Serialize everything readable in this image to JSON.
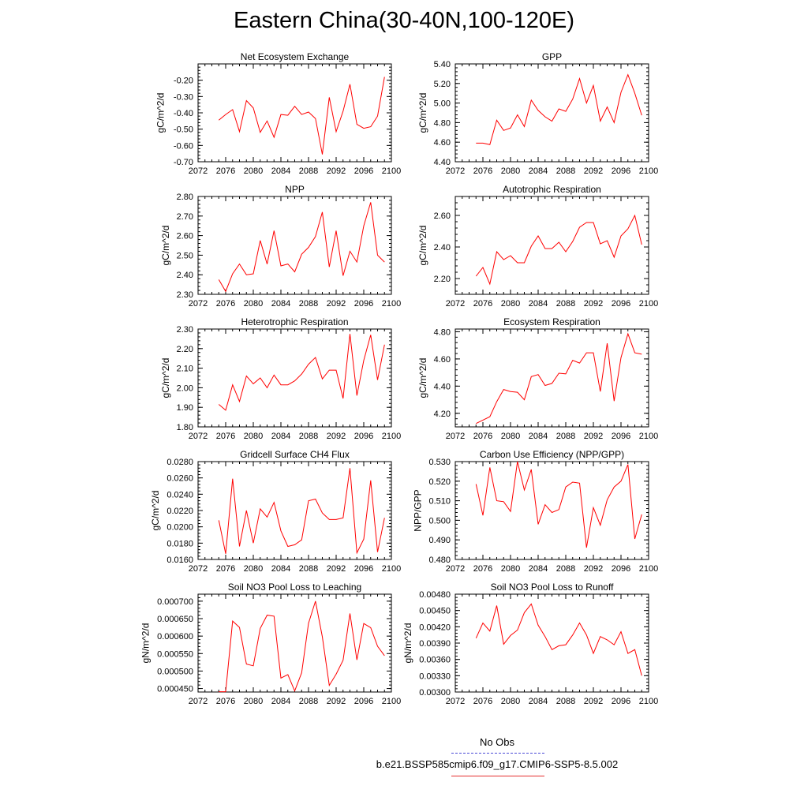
{
  "title": "Eastern China(30-40N,100-120E)",
  "series_color": "#ff0000",
  "legend": {
    "no_obs": "No Obs",
    "case": "b.e21.BSSP585cmip6.f09_g17.CMIP6-SSP5-8.5.002"
  },
  "chart_data": [
    {
      "type": "line",
      "title": "Net Ecosystem Exchange",
      "ylabel": "gC/m^2/d",
      "xlim": [
        2072,
        2100
      ],
      "xticks": [
        "2072",
        "2076",
        "2080",
        "2084",
        "2088",
        "2092",
        "2096",
        "2100"
      ],
      "ylim": [
        -0.7,
        -0.1
      ],
      "yticks": [
        "-0.70",
        "-0.60",
        "-0.50",
        "-0.40",
        "-0.30",
        "-0.20"
      ],
      "x": [
        2075,
        2076,
        2077,
        2078,
        2079,
        2080,
        2081,
        2082,
        2083,
        2084,
        2085,
        2086,
        2087,
        2088,
        2089,
        2090,
        2091,
        2092,
        2093,
        2094,
        2095,
        2096,
        2097,
        2098,
        2099
      ],
      "values": [
        -0.445,
        -0.41,
        -0.38,
        -0.515,
        -0.325,
        -0.37,
        -0.52,
        -0.45,
        -0.55,
        -0.41,
        -0.415,
        -0.36,
        -0.41,
        -0.395,
        -0.435,
        -0.655,
        -0.305,
        -0.515,
        -0.39,
        -0.225,
        -0.47,
        -0.495,
        -0.485,
        -0.42,
        -0.18
      ]
    },
    {
      "type": "line",
      "title": "GPP",
      "ylabel": "gC/m^2/d",
      "xlim": [
        2072,
        2100
      ],
      "xticks": [
        "2072",
        "2076",
        "2080",
        "2084",
        "2088",
        "2092",
        "2096",
        "2100"
      ],
      "ylim": [
        4.4,
        5.4
      ],
      "yticks": [
        "4.40",
        "4.60",
        "4.80",
        "5.00",
        "5.20",
        "5.40"
      ],
      "x": [
        2075,
        2076,
        2077,
        2078,
        2079,
        2080,
        2081,
        2082,
        2083,
        2084,
        2085,
        2086,
        2087,
        2088,
        2089,
        2090,
        2091,
        2092,
        2093,
        2094,
        2095,
        2096,
        2097,
        2098,
        2099
      ],
      "values": [
        4.59,
        4.59,
        4.575,
        4.825,
        4.72,
        4.745,
        4.88,
        4.76,
        5.03,
        4.925,
        4.86,
        4.815,
        4.94,
        4.915,
        5.04,
        5.25,
        5.0,
        5.18,
        4.815,
        4.96,
        4.8,
        5.11,
        5.29,
        5.1,
        4.875
      ]
    },
    {
      "type": "line",
      "title": "NPP",
      "ylabel": "gC/m^2/d",
      "xlim": [
        2072,
        2100
      ],
      "xticks": [
        "2072",
        "2076",
        "2080",
        "2084",
        "2088",
        "2092",
        "2096",
        "2100"
      ],
      "ylim": [
        2.3,
        2.8
      ],
      "yticks": [
        "2.30",
        "2.40",
        "2.50",
        "2.60",
        "2.70",
        "2.80"
      ],
      "x": [
        2075,
        2076,
        2077,
        2078,
        2079,
        2080,
        2081,
        2082,
        2083,
        2084,
        2085,
        2086,
        2087,
        2088,
        2089,
        2090,
        2091,
        2092,
        2093,
        2094,
        2095,
        2096,
        2097,
        2098,
        2099
      ],
      "values": [
        2.375,
        2.315,
        2.405,
        2.455,
        2.4,
        2.405,
        2.575,
        2.455,
        2.625,
        2.445,
        2.455,
        2.415,
        2.505,
        2.54,
        2.595,
        2.72,
        2.44,
        2.625,
        2.395,
        2.52,
        2.465,
        2.65,
        2.77,
        2.5,
        2.465
      ]
    },
    {
      "type": "line",
      "title": "Autotrophic Respiration",
      "ylabel": "gC/m^2/d",
      "xlim": [
        2072,
        2100
      ],
      "xticks": [
        "2072",
        "2076",
        "2080",
        "2084",
        "2088",
        "2092",
        "2096",
        "2100"
      ],
      "ylim": [
        2.1,
        2.72
      ],
      "yticks": [
        "2.20",
        "2.40",
        "2.60"
      ],
      "x": [
        2075,
        2076,
        2077,
        2078,
        2079,
        2080,
        2081,
        2082,
        2083,
        2084,
        2085,
        2086,
        2087,
        2088,
        2089,
        2090,
        2091,
        2092,
        2093,
        2094,
        2095,
        2096,
        2097,
        2098,
        2099
      ],
      "values": [
        2.215,
        2.27,
        2.165,
        2.37,
        2.32,
        2.345,
        2.3,
        2.3,
        2.405,
        2.47,
        2.39,
        2.39,
        2.43,
        2.37,
        2.435,
        2.525,
        2.555,
        2.555,
        2.42,
        2.44,
        2.335,
        2.47,
        2.515,
        2.6,
        2.415
      ]
    },
    {
      "type": "line",
      "title": "Heterotrophic Respiration",
      "ylabel": "gC/m^2/d",
      "xlim": [
        2072,
        2100
      ],
      "xticks": [
        "2072",
        "2076",
        "2080",
        "2084",
        "2088",
        "2092",
        "2096",
        "2100"
      ],
      "ylim": [
        1.8,
        2.3
      ],
      "yticks": [
        "1.80",
        "1.90",
        "2.00",
        "2.10",
        "2.20",
        "2.30"
      ],
      "x": [
        2075,
        2076,
        2077,
        2078,
        2079,
        2080,
        2081,
        2082,
        2083,
        2084,
        2085,
        2086,
        2087,
        2088,
        2089,
        2090,
        2091,
        2092,
        2093,
        2094,
        2095,
        2096,
        2097,
        2098,
        2099
      ],
      "values": [
        1.915,
        1.885,
        2.015,
        1.93,
        2.06,
        2.02,
        2.05,
        2.0,
        2.065,
        2.015,
        2.015,
        2.035,
        2.07,
        2.12,
        2.155,
        2.045,
        2.09,
        2.09,
        1.945,
        2.275,
        1.96,
        2.14,
        2.27,
        2.04,
        2.22
      ]
    },
    {
      "type": "line",
      "title": "Ecosystem Respiration",
      "ylabel": "gC/m^2/d",
      "xlim": [
        2072,
        2100
      ],
      "xticks": [
        "2072",
        "2076",
        "2080",
        "2084",
        "2088",
        "2092",
        "2096",
        "2100"
      ],
      "ylim": [
        4.1,
        4.82
      ],
      "yticks": [
        "4.20",
        "4.40",
        "4.60",
        "4.80"
      ],
      "x": [
        2075,
        2076,
        2077,
        2078,
        2079,
        2080,
        2081,
        2082,
        2083,
        2084,
        2085,
        2086,
        2087,
        2088,
        2089,
        2090,
        2091,
        2092,
        2093,
        2094,
        2095,
        2096,
        2097,
        2098,
        2099
      ],
      "values": [
        4.125,
        4.15,
        4.175,
        4.285,
        4.375,
        4.36,
        4.355,
        4.3,
        4.47,
        4.485,
        4.405,
        4.42,
        4.495,
        4.49,
        4.59,
        4.57,
        4.645,
        4.645,
        4.36,
        4.715,
        4.29,
        4.61,
        4.785,
        4.645,
        4.635
      ]
    },
    {
      "type": "line",
      "title": "Gridcell Surface CH4 Flux",
      "ylabel": "gC/m^2/d",
      "xlim": [
        2072,
        2100
      ],
      "xticks": [
        "2072",
        "2076",
        "2080",
        "2084",
        "2088",
        "2092",
        "2096",
        "2100"
      ],
      "ylim": [
        0.016,
        0.028
      ],
      "yticks": [
        "0.0160",
        "0.0180",
        "0.0200",
        "0.0220",
        "0.0240",
        "0.0260",
        "0.0280"
      ],
      "x": [
        2075,
        2076,
        2077,
        2078,
        2079,
        2080,
        2081,
        2082,
        2083,
        2084,
        2085,
        2086,
        2087,
        2088,
        2089,
        2090,
        2091,
        2092,
        2093,
        2094,
        2095,
        2096,
        2097,
        2098,
        2099
      ],
      "values": [
        0.0208,
        0.0167,
        0.0259,
        0.0176,
        0.022,
        0.018,
        0.0222,
        0.0212,
        0.023,
        0.0195,
        0.0176,
        0.0178,
        0.0184,
        0.0232,
        0.0234,
        0.0217,
        0.0209,
        0.0209,
        0.0211,
        0.0272,
        0.0168,
        0.0185,
        0.0257,
        0.0169,
        0.0211
      ]
    },
    {
      "type": "line",
      "title": "Carbon Use Efficiency (NPP/GPP)",
      "ylabel": "NPP/GPP",
      "xlim": [
        2072,
        2100
      ],
      "xticks": [
        "2072",
        "2076",
        "2080",
        "2084",
        "2088",
        "2092",
        "2096",
        "2100"
      ],
      "ylim": [
        0.48,
        0.53
      ],
      "yticks": [
        "0.480",
        "0.490",
        "0.500",
        "0.510",
        "0.520",
        "0.530"
      ],
      "x": [
        2075,
        2076,
        2077,
        2078,
        2079,
        2080,
        2081,
        2082,
        2083,
        2084,
        2085,
        2086,
        2087,
        2088,
        2089,
        2090,
        2091,
        2092,
        2093,
        2094,
        2095,
        2096,
        2097,
        2098,
        2099
      ],
      "values": [
        0.5185,
        0.5025,
        0.527,
        0.51,
        0.5095,
        0.5045,
        0.53,
        0.5155,
        0.526,
        0.498,
        0.508,
        0.504,
        0.5055,
        0.517,
        0.5195,
        0.519,
        0.486,
        0.5065,
        0.4975,
        0.5105,
        0.517,
        0.52,
        0.5285,
        0.4905,
        0.503
      ]
    },
    {
      "type": "line",
      "title": "Soil NO3 Pool Loss to Leaching",
      "ylabel": "gN/m^2/d",
      "xlim": [
        2072,
        2100
      ],
      "xticks": [
        "2072",
        "2076",
        "2080",
        "2084",
        "2088",
        "2092",
        "2096",
        "2100"
      ],
      "ylim": [
        0.00044,
        0.00072
      ],
      "yticks": [
        "0.000450",
        "0.000500",
        "0.000550",
        "0.000600",
        "0.000650",
        "0.000700"
      ],
      "x": [
        2075,
        2076,
        2077,
        2078,
        2079,
        2080,
        2081,
        2082,
        2083,
        2084,
        2085,
        2086,
        2087,
        2088,
        2089,
        2090,
        2091,
        2092,
        2093,
        2094,
        2095,
        2096,
        2097,
        2098,
        2099
      ],
      "values": [
        0.000441,
        0.000441,
        0.000643,
        0.000625,
        0.00052,
        0.000515,
        0.000622,
        0.00066,
        0.000657,
        0.00048,
        0.00049,
        0.000443,
        0.000495,
        0.000637,
        0.0007,
        0.000598,
        0.000459,
        0.000491,
        0.000531,
        0.000665,
        0.000532,
        0.000636,
        0.000624,
        0.000571,
        0.000544
      ]
    },
    {
      "type": "line",
      "title": "Soil NO3 Pool Loss to Runoff",
      "ylabel": "gN/m^2/d",
      "xlim": [
        2072,
        2100
      ],
      "xticks": [
        "2072",
        "2076",
        "2080",
        "2084",
        "2088",
        "2092",
        "2096",
        "2100"
      ],
      "ylim": [
        0.003,
        0.0048
      ],
      "yticks": [
        "0.00300",
        "0.00330",
        "0.00360",
        "0.00390",
        "0.00420",
        "0.00450",
        "0.00480"
      ],
      "x": [
        2075,
        2076,
        2077,
        2078,
        2079,
        2080,
        2081,
        2082,
        2083,
        2084,
        2085,
        2086,
        2087,
        2088,
        2089,
        2090,
        2091,
        2092,
        2093,
        2094,
        2095,
        2096,
        2097,
        2098,
        2099
      ],
      "values": [
        0.00399,
        0.00427,
        0.00412,
        0.00459,
        0.00388,
        0.00404,
        0.00414,
        0.00446,
        0.00462,
        0.00423,
        0.00402,
        0.00378,
        0.00385,
        0.00387,
        0.00405,
        0.00427,
        0.00405,
        0.00371,
        0.00402,
        0.00396,
        0.00387,
        0.00411,
        0.00371,
        0.00378,
        0.0033
      ]
    }
  ]
}
